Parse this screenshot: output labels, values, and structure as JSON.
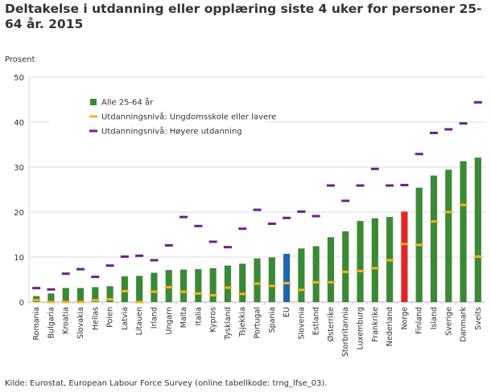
{
  "chart_data": {
    "type": "bar",
    "title": "Deltakelse i utdanning eller opplæring siste 4 uker for personer 25-64 år. 2015",
    "ylabel": "Prosent",
    "xlabel": "",
    "ylim": [
      0,
      50
    ],
    "yticks": [
      0,
      10,
      20,
      30,
      40,
      50
    ],
    "grid": true,
    "legend_placement": "top-left",
    "categories": [
      "Romania",
      "Bulgaria",
      "Kroatia",
      "Slovakia",
      "Hellas",
      "Polen",
      "Latvia",
      "Litauen",
      "Irland",
      "Ungarn",
      "Malta",
      "Italia",
      "Kypros",
      "Tyskland",
      "Tsjekkia",
      "Portugal",
      "Spania",
      "EU",
      "Slovenia",
      "Estland",
      "Østerrike",
      "Storbritannia",
      "Luxemburg",
      "Frankrike",
      "Nederland",
      "Norge",
      "Finland",
      "Island",
      "Sverige",
      "Danmark",
      "Sveits"
    ],
    "series": [
      {
        "name": "Alle 25-64 år",
        "mark": "bar",
        "color": "#3a8a35",
        "values": [
          1.3,
          1.9,
          3.1,
          3.1,
          3.3,
          3.5,
          5.7,
          5.8,
          6.5,
          7.1,
          7.2,
          7.3,
          7.5,
          8.1,
          8.5,
          9.7,
          9.9,
          10.7,
          11.9,
          12.4,
          14.4,
          15.7,
          18.0,
          18.6,
          18.9,
          20.1,
          25.4,
          28.1,
          29.4,
          31.3,
          32.1
        ]
      },
      {
        "name": "Utdanningsnivå: Ungdomsskole eller lavere",
        "mark": "dash",
        "color": "#f0b323",
        "values": [
          0.4,
          0.0,
          0.0,
          0.0,
          0.4,
          0.6,
          2.4,
          0.0,
          2.3,
          3.3,
          2.3,
          1.9,
          1.5,
          3.2,
          1.8,
          4.1,
          3.6,
          4.2,
          2.7,
          4.4,
          4.4,
          6.7,
          6.9,
          7.5,
          9.3,
          12.9,
          12.7,
          17.9,
          20.0,
          21.6,
          10.1
        ]
      },
      {
        "name": "Utdanningsnivå: Høyere utdanning",
        "mark": "dash",
        "color": "#6a2285",
        "values": [
          3.1,
          2.8,
          6.3,
          7.3,
          5.6,
          8.1,
          10.1,
          10.3,
          9.3,
          12.6,
          18.9,
          16.9,
          13.4,
          12.2,
          16.3,
          20.5,
          17.4,
          18.7,
          20.1,
          19.1,
          25.9,
          22.5,
          25.9,
          29.6,
          25.9,
          26.0,
          32.9,
          37.6,
          38.4,
          39.7,
          44.4
        ]
      }
    ],
    "highlight_colors": {
      "EU": "#1f66b0",
      "Norge": "#e32625"
    }
  },
  "source": "Kilde: Eurostat, European Labour Force Survey (online tabellkode: trng_lfse_03)."
}
